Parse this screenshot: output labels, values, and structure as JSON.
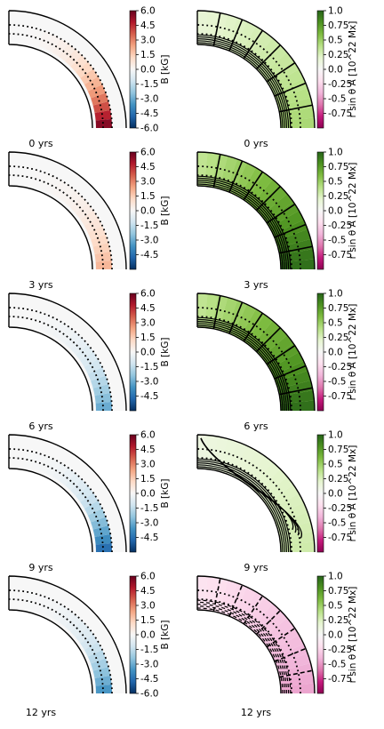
{
  "figure": {
    "panel_count_rows": 5,
    "panel_count_cols": 2
  },
  "colors": {
    "diverging_rb": [
      "#053061",
      "#2166ac",
      "#4393c3",
      "#92c5de",
      "#d1e5f0",
      "#f7f7f7",
      "#fddbc7",
      "#f4a582",
      "#d6604d",
      "#b2182b",
      "#67001f"
    ],
    "diverging_pg": [
      "#8e0152",
      "#c51b7d",
      "#de77ae",
      "#f1b6da",
      "#fde0ef",
      "#f7f7f7",
      "#e6f5d0",
      "#b8e186",
      "#7fbc41",
      "#4d9221",
      "#276419"
    ],
    "line": "#000000"
  },
  "chart_data": [
    {
      "type": "heatmap",
      "column": "field",
      "time_label": "0 yrs",
      "colorbar": {
        "label": "B [kG]",
        "ticks": [
          "6.0",
          "4.5",
          "3.0",
          "1.5",
          "0.0",
          "-1.5",
          "-3.0",
          "-4.5",
          "-6.0"
        ],
        "range": [
          -6.0,
          6.0
        ],
        "cmap": "RdBu_r"
      },
      "field_summary": {
        "max_value": 5.5,
        "min_value": 0.0,
        "concentration": "equator"
      }
    },
    {
      "type": "heatmap",
      "column": "potential",
      "time_label": "0 yrs",
      "colorbar": {
        "label": "r sin θ A [10^22 Mx]",
        "ticks": [
          "1.0",
          "0.75",
          "0.5",
          "0.25",
          "0.0",
          "-0.25",
          "-0.5",
          "-0.75"
        ],
        "range": [
          -1.0,
          1.0
        ],
        "cmap": "PiYG"
      },
      "field_summary": {
        "max_value": 0.45,
        "min_value": 0.0,
        "contours": "radial and nested"
      }
    },
    {
      "type": "heatmap",
      "column": "field",
      "time_label": "3 yrs",
      "colorbar": {
        "label": "B [kG]",
        "ticks": [
          "6.0",
          "4.5",
          "3.0",
          "1.5",
          "0.0",
          "-1.5",
          "-3.0",
          "-4.5"
        ],
        "range": [
          -6.0,
          6.0
        ],
        "cmap": "RdBu_r"
      },
      "field_summary": {
        "max_value": 2.0,
        "min_value": -1.0,
        "concentration": "equator"
      }
    },
    {
      "type": "heatmap",
      "column": "potential",
      "time_label": "3 yrs",
      "colorbar": {
        "label": "r sin θ A [10^22 Mx]",
        "ticks": [
          "1.0",
          "0.75",
          "0.5",
          "0.25",
          "0.0",
          "-0.25",
          "-0.5",
          "-0.75"
        ],
        "range": [
          -1.0,
          1.0
        ],
        "cmap": "PiYG"
      },
      "field_summary": {
        "max_value": 0.95,
        "min_value": 0.0,
        "contours": "radial and nested"
      }
    },
    {
      "type": "heatmap",
      "column": "field",
      "time_label": "6 yrs",
      "colorbar": {
        "label": "B [kG]",
        "ticks": [
          "6.0",
          "4.5",
          "3.0",
          "1.5",
          "0.0",
          "-1.5",
          "-3.0",
          "-4.5"
        ],
        "range": [
          -6.0,
          6.0
        ],
        "cmap": "RdBu_r"
      },
      "field_summary": {
        "max_value": 0.0,
        "min_value": -3.0,
        "concentration": "equator"
      }
    },
    {
      "type": "heatmap",
      "column": "potential",
      "time_label": "6 yrs",
      "colorbar": {
        "label": "r sin θ A [10^22 Mx]",
        "ticks": [
          "1.0",
          "0.75",
          "0.5",
          "0.25",
          "0.0",
          "-0.25",
          "-0.5",
          "-0.75"
        ],
        "range": [
          -1.0,
          1.0
        ],
        "cmap": "PiYG"
      },
      "field_summary": {
        "max_value": 0.95,
        "min_value": 0.0,
        "contours": "radial and nested"
      }
    },
    {
      "type": "heatmap",
      "column": "field",
      "time_label": "9 yrs",
      "colorbar": {
        "label": "B [kG]",
        "ticks": [
          "6.0",
          "4.5",
          "3.0",
          "1.5",
          "0.0",
          "-1.5",
          "-3.0",
          "-4.5"
        ],
        "range": [
          -6.0,
          6.0
        ],
        "cmap": "RdBu_r"
      },
      "field_summary": {
        "max_value": 0.0,
        "min_value": -4.5,
        "concentration": "equator"
      }
    },
    {
      "type": "heatmap",
      "column": "potential",
      "time_label": "9 yrs",
      "colorbar": {
        "label": "r sin θ A [10^22 Mx]",
        "ticks": [
          "1.0",
          "0.75",
          "0.5",
          "0.25",
          "0.0",
          "-0.25",
          "-0.5",
          "-0.75"
        ],
        "range": [
          -1.0,
          1.0
        ],
        "cmap": "PiYG"
      },
      "field_summary": {
        "max_value": 0.3,
        "min_value": -0.1,
        "contours": "bent near pole"
      }
    },
    {
      "type": "heatmap",
      "column": "field",
      "time_label": "12 yrs",
      "colorbar": {
        "label": "B [kG]",
        "ticks": [
          "6.0",
          "4.5",
          "3.0",
          "1.5",
          "0.0",
          "-1.5",
          "-3.0",
          "-4.5",
          "-6.0"
        ],
        "range": [
          -6.0,
          6.0
        ],
        "cmap": "RdBu_r"
      },
      "field_summary": {
        "max_value": 0.3,
        "min_value": -3.5,
        "concentration": "equator"
      }
    },
    {
      "type": "heatmap",
      "column": "potential",
      "time_label": "12 yrs",
      "colorbar": {
        "label": "r sin θ A [10^22 Mx]",
        "ticks": [
          "1.0",
          "0.75",
          "0.5",
          "0.25",
          "0.0",
          "-0.25",
          "-0.5",
          "-0.75"
        ],
        "range": [
          -1.0,
          1.0
        ],
        "cmap": "PiYG"
      },
      "field_summary": {
        "max_value": 0.0,
        "min_value": -0.45,
        "contours": "dashed (negative)"
      }
    }
  ]
}
